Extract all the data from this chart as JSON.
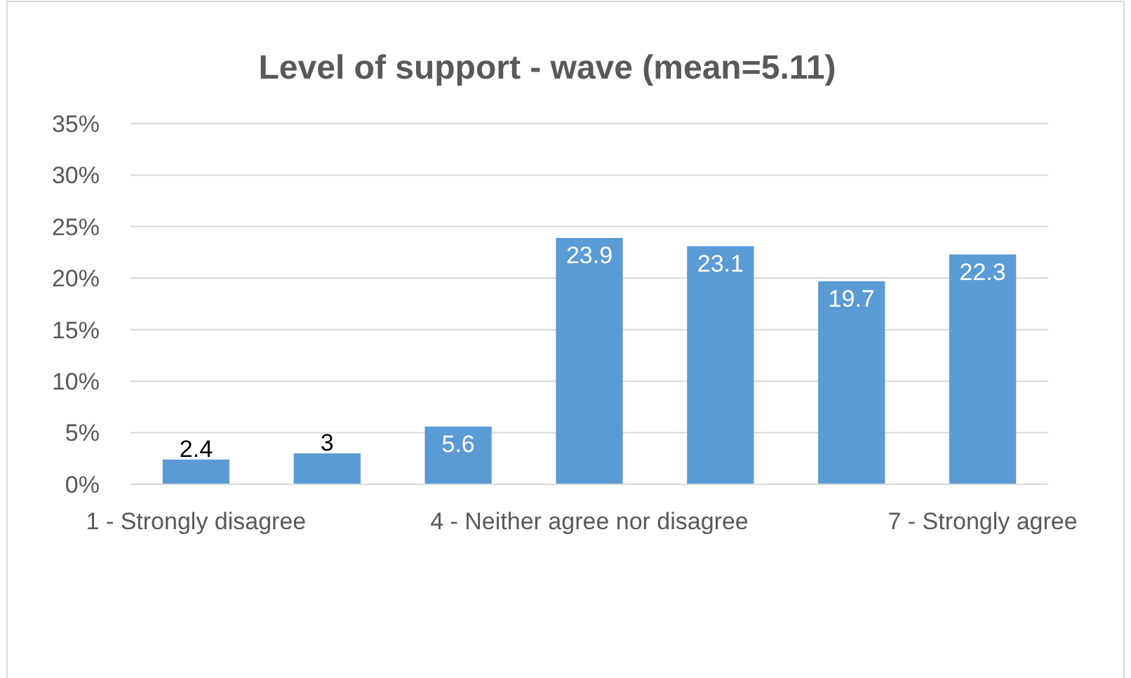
{
  "chart_data": {
    "type": "bar",
    "title": "Level of support - wave (mean=5.11)",
    "categories": [
      "1 - Strongly disagree",
      null,
      null,
      "4 - Neither agree nor disagree",
      null,
      null,
      "7 - Strongly agree"
    ],
    "values": [
      2.4,
      3,
      5.6,
      23.9,
      23.1,
      19.7,
      22.3
    ],
    "color": "#5b9bd5",
    "ylim": [
      0,
      35
    ],
    "yticks": [
      {
        "value": 0,
        "label": "0%"
      },
      {
        "value": 5,
        "label": "5%"
      },
      {
        "value": 10,
        "label": "10%"
      },
      {
        "value": 15,
        "label": "15%"
      },
      {
        "value": 20,
        "label": "20%"
      },
      {
        "value": 25,
        "label": "25%"
      },
      {
        "value": 30,
        "label": "30%"
      },
      {
        "value": 35,
        "label": "35%"
      }
    ],
    "grid": "y",
    "data_labels": true
  }
}
